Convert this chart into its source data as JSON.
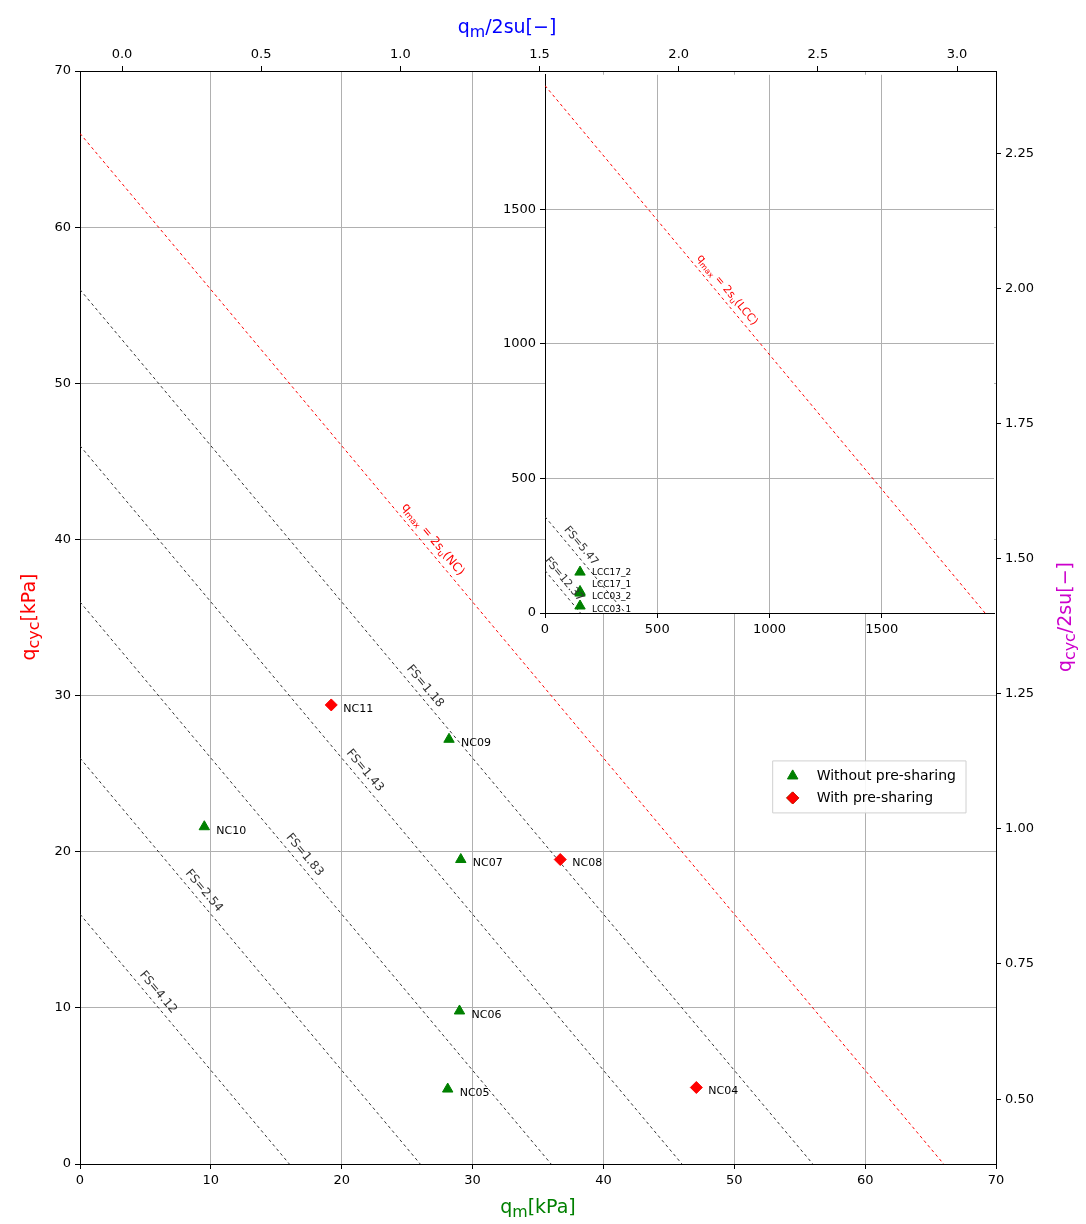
{
  "chart_data": [
    {
      "type": "scatter",
      "xlabel": "q$_{m}$[kPa]",
      "ylabel": "q$_{cyc}$[kPa]",
      "x2label": "q$_{m}$/2su[−]",
      "y2label": "q$_{cyc}$/2su[−]",
      "xlim": [
        0,
        70
      ],
      "xticks": [
        0,
        10,
        20,
        30,
        40,
        50,
        60,
        70
      ],
      "ylim": [
        0,
        70
      ],
      "yticks": [
        0,
        10,
        20,
        30,
        40,
        50,
        60,
        70
      ],
      "x2lim": [
        -0.151,
        3.14
      ],
      "x2ticks": [
        {
          "value": 0,
          "label": "0.0"
        },
        {
          "value": 0.5,
          "label": "0.5"
        },
        {
          "value": 1,
          "label": "1.0"
        },
        {
          "value": 1.5,
          "label": "1.5"
        },
        {
          "value": 2,
          "label": "2.0"
        },
        {
          "value": 2.5,
          "label": "2.5"
        },
        {
          "value": 3,
          "label": "3.0"
        }
      ],
      "y2lim": [
        0.38,
        2.402
      ],
      "y2ticks": [
        {
          "value": 0.5,
          "label": "0.50"
        },
        {
          "value": 0.75,
          "label": "0.75"
        },
        {
          "value": 1,
          "label": "1.00"
        },
        {
          "value": 1.25,
          "label": "1.25"
        },
        {
          "value": 1.5,
          "label": "1.50"
        },
        {
          "value": 1.75,
          "label": "1.75"
        },
        {
          "value": 2,
          "label": "2.00"
        },
        {
          "value": 2.25,
          "label": "2.25"
        }
      ],
      "grid": true,
      "legend": "right",
      "series": [
        {
          "name": "Without pre-sharing",
          "type": "scatter",
          "marker": "triangle",
          "color": "#008000",
          "x": [
            28.2,
            9.5,
            29.1,
            29.0,
            28.1
          ],
          "values": [
            27.2,
            21.6,
            19.5,
            9.8,
            4.8
          ]
        },
        {
          "name": "With pre-sharing",
          "type": "scatter",
          "marker": "diamond",
          "color": "#ff0000",
          "x": [
            19.2,
            36.7,
            47.1
          ],
          "values": [
            29.4,
            19.5,
            4.9
          ]
        },
        {
          "type": "line",
          "marker": "none",
          "line_style": "dashed",
          "color": "#ff0000",
          "x": [
            0,
            66
          ],
          "values": [
            66,
            0
          ]
        },
        {
          "type": "line",
          "marker": "none",
          "line_style": "dashed",
          "color": "#333333",
          "x": [
            0,
            56
          ],
          "values": [
            56,
            0
          ]
        },
        {
          "type": "line",
          "marker": "none",
          "line_style": "dashed",
          "color": "#333333",
          "x": [
            0,
            46
          ],
          "values": [
            46,
            0
          ]
        },
        {
          "type": "line",
          "marker": "none",
          "line_style": "dashed",
          "color": "#333333",
          "x": [
            0,
            36
          ],
          "values": [
            36,
            0
          ]
        },
        {
          "type": "line",
          "marker": "none",
          "line_style": "dashed",
          "color": "#333333",
          "x": [
            0,
            26
          ],
          "values": [
            26,
            0
          ]
        },
        {
          "type": "line",
          "marker": "none",
          "line_style": "dashed",
          "color": "#333333",
          "x": [
            0,
            16
          ],
          "values": [
            16,
            0
          ]
        }
      ],
      "annotations": [
        {
          "text": "NC09",
          "x": 28.2,
          "y": 27.2
        },
        {
          "text": "NC10",
          "x": 9.5,
          "y": 21.6
        },
        {
          "text": "NC07",
          "x": 29.1,
          "y": 19.5
        },
        {
          "text": "NC06",
          "x": 29.0,
          "y": 9.8
        },
        {
          "text": "NC05",
          "x": 28.1,
          "y": 4.8
        },
        {
          "text": "NC11",
          "x": 19.2,
          "y": 29.4
        },
        {
          "text": "NC08",
          "x": 36.7,
          "y": 19.5
        },
        {
          "text": "NC04",
          "x": 47.1,
          "y": 4.9
        },
        {
          "text": "q$_{max}$ = 2s$_{u}$(NC)",
          "x": 26.4,
          "y": 39.6
        },
        {
          "text": "FS=1.18",
          "x": 25.8,
          "y": 30.2
        },
        {
          "text": "FS=1.43",
          "x": 21.2,
          "y": 24.8
        },
        {
          "text": "FS=1.83",
          "x": 16.6,
          "y": 19.4
        },
        {
          "text": "FS=2.54",
          "x": 8.9,
          "y": 17.1
        },
        {
          "text": "FS=4.12",
          "x": 5.4,
          "y": 10.6
        }
      ]
    },
    {
      "type": "scatter",
      "xlim": [
        0,
        2000
      ],
      "xticks": [
        0,
        500,
        1000,
        1500
      ],
      "ylim": [
        0,
        2000
      ],
      "yticks": [
        0,
        500,
        1000,
        1500
      ],
      "grid": true,
      "series": [
        {
          "type": "scatter",
          "marker": "triangle",
          "color": "#008000",
          "x": [
            156,
            156,
            156,
            156
          ],
          "values": [
            152,
            80,
            74,
            26
          ]
        },
        {
          "type": "line",
          "marker": "none",
          "line_style": "dashed",
          "color": "#ff0000",
          "x": [
            0,
            1960
          ],
          "values": [
            1960,
            0
          ]
        },
        {
          "type": "line",
          "marker": "none",
          "line_style": "dashed",
          "color": "#333333",
          "x": [
            0,
            358
          ],
          "values": [
            358,
            0
          ]
        },
        {
          "type": "line",
          "marker": "none",
          "line_style": "dashed",
          "color": "#333333",
          "x": [
            0,
            158
          ],
          "values": [
            158,
            0
          ]
        }
      ],
      "annotations": [
        {
          "text": "LCC17_2",
          "x": 156,
          "y": 152
        },
        {
          "text": "LCC17_1",
          "x": 156,
          "y": 80
        },
        {
          "text": "LCC03_2",
          "x": 156,
          "y": 74
        },
        {
          "text": "LCC03_1",
          "x": 156,
          "y": 26
        },
        {
          "text": "q$_{max}$ = 2s$_{u}$(LCC)",
          "x": 781,
          "y": 1179
        },
        {
          "text": "FS=5.47",
          "x": 130,
          "y": 228
        },
        {
          "text": "FS=12.37",
          "x": 54,
          "y": 104
        }
      ]
    }
  ]
}
